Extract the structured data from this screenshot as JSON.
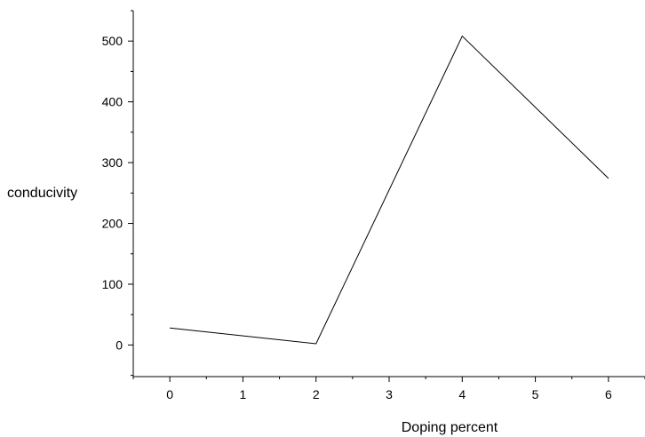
{
  "chart_data": {
    "type": "line",
    "title": "",
    "xlabel": "Doping percent",
    "ylabel": "conducivity",
    "x": [
      0,
      2,
      4,
      6
    ],
    "series": [
      {
        "values": [
          28,
          2,
          508,
          274
        ]
      }
    ],
    "xlim": [
      -0.5,
      6.5
    ],
    "ylim": [
      -52,
      550
    ],
    "xticks": [
      "0",
      "1",
      "2",
      "3",
      "4",
      "5",
      "6"
    ],
    "yticks": [
      "0",
      "100",
      "200",
      "300",
      "400",
      "500"
    ],
    "grid": false,
    "legend": "none",
    "line_color": "#000000"
  }
}
